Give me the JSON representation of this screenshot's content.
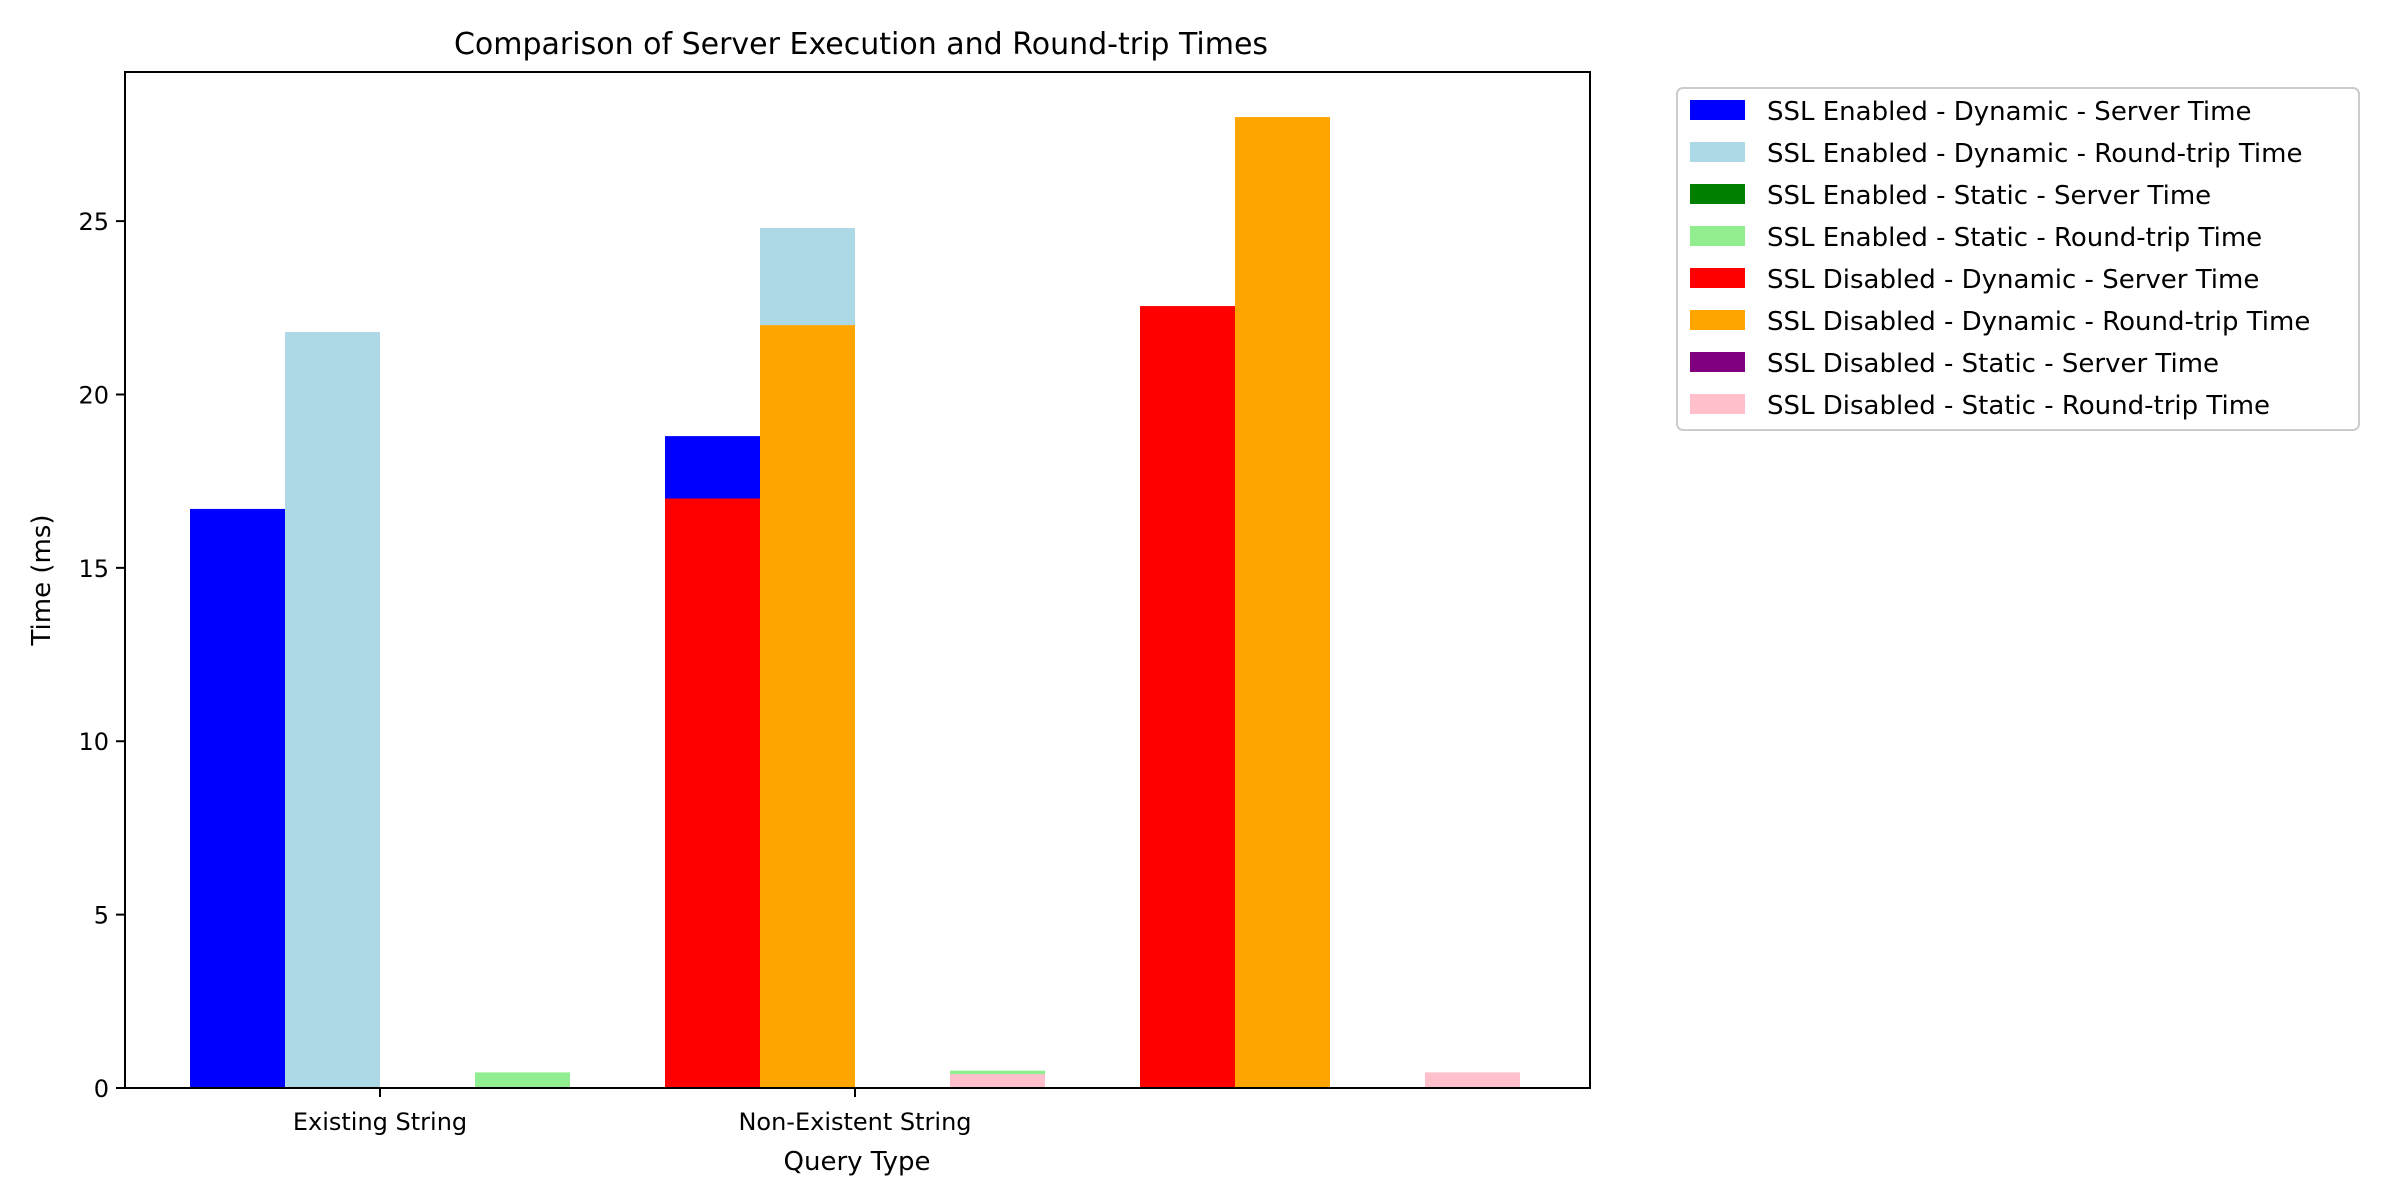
{
  "chart_data": {
    "type": "bar",
    "title": "Comparison of Server Execution and Round-trip Times",
    "xlabel": "Query Type",
    "ylabel": "Time (ms)",
    "ylim": [
      0,
      29.3
    ],
    "yticks": [
      0,
      5,
      10,
      15,
      20,
      25
    ],
    "categories": [
      "Existing String",
      "Non-Existent String"
    ],
    "grid": false,
    "legend_position": "outside right, top",
    "bars": [
      {
        "slot": 0,
        "series": 0,
        "value": 16.7
      },
      {
        "slot": 1,
        "series": 1,
        "value": 21.8
      },
      {
        "slot": 2,
        "series": 2,
        "value": 0.0
      },
      {
        "slot": 3,
        "series": 3,
        "value": 0.45
      },
      {
        "slot": 5,
        "series": 0,
        "value": 18.8
      },
      {
        "slot": 6,
        "series": 1,
        "value": 24.8
      },
      {
        "slot": 7,
        "series": 2,
        "value": 0.0
      },
      {
        "slot": 8,
        "series": 3,
        "value": 0.5
      },
      {
        "slot": 5,
        "series": 4,
        "value": 17.0
      },
      {
        "slot": 6,
        "series": 5,
        "value": 22.0
      },
      {
        "slot": 7,
        "series": 6,
        "value": 0.0
      },
      {
        "slot": 8,
        "series": 7,
        "value": 0.4
      },
      {
        "slot": 10,
        "series": 4,
        "value": 22.55
      },
      {
        "slot": 11,
        "series": 5,
        "value": 28.0
      },
      {
        "slot": 12,
        "series": 6,
        "value": 0.0
      },
      {
        "slot": 13,
        "series": 7,
        "value": 0.45
      }
    ],
    "series": [
      {
        "name": "SSL Enabled - Dynamic - Server Time",
        "color": "#0000ff"
      },
      {
        "name": "SSL Enabled - Dynamic - Round-trip Time",
        "color": "#add8e6"
      },
      {
        "name": "SSL Enabled - Static - Server Time",
        "color": "#008000"
      },
      {
        "name": "SSL Enabled - Static - Round-trip Time",
        "color": "#90ee90"
      },
      {
        "name": "SSL Disabled - Dynamic - Server Time",
        "color": "#ff0000"
      },
      {
        "name": "SSL Disabled - Dynamic - Round-trip Time",
        "color": "#ffa500"
      },
      {
        "name": "SSL Disabled - Static - Server Time",
        "color": "#800080"
      },
      {
        "name": "SSL Disabled - Static - Round-trip Time",
        "color": "#ffc0cb"
      }
    ]
  }
}
